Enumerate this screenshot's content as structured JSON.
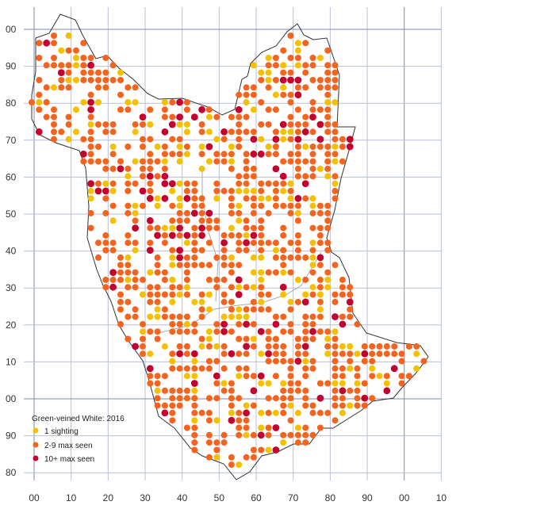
{
  "map": {
    "title": "Green-veined White:  2016",
    "x_axis_labels": [
      "00",
      "10",
      "20",
      "30",
      "40",
      "50",
      "60",
      "70",
      "80",
      "90",
      "00",
      "10"
    ],
    "y_axis_labels": [
      "00",
      "90",
      "80",
      "70",
      "60",
      "50",
      "40",
      "30",
      "20",
      "10",
      "00",
      "90",
      "80"
    ],
    "legend": [
      {
        "label": "1 sighting",
        "color": "#f5c000"
      },
      {
        "label": "2-9 max seen",
        "color": "#f4641e"
      },
      {
        "label": "10+ max seen",
        "color": "#c4002e"
      }
    ],
    "colors": {
      "gridline": "#b8bfd8",
      "major_gridline": "#7f8ab0",
      "boundary": "#333333",
      "inner_boundary": "#aaaaaa"
    }
  },
  "chart_data": {
    "type": "scatter",
    "title": "Green-veined White:  2016",
    "series": [
      {
        "name": "1 sighting",
        "color": "#f5c000",
        "points": [
          [
            2,
            62
          ],
          [
            7,
            197
          ],
          [
            12,
            138
          ],
          [
            22,
            106
          ],
          [
            26,
            100
          ],
          [
            30,
            122
          ],
          [
            38,
            191
          ],
          [
            42,
            195
          ],
          [
            48,
            138
          ],
          [
            51,
            185
          ],
          [
            55,
            116
          ],
          [
            60,
            188
          ],
          [
            62,
            115
          ],
          [
            65,
            118
          ],
          [
            73,
            89
          ],
          [
            77,
            130
          ],
          [
            83,
            129
          ],
          [
            87,
            66
          ],
          [
            89,
            71
          ],
          [
            92,
            88
          ],
          [
            98,
            106
          ],
          [
            99,
            17
          ],
          [
            100,
            94
          ],
          [
            101,
            115
          ],
          [
            106,
            89
          ],
          [
            105,
            12
          ],
          [
            106,
            13
          ],
          [
            107,
            8
          ],
          [
            111,
            11
          ],
          [
            114,
            17
          ],
          [
            115,
            21
          ],
          [
            118,
            48
          ],
          [
            119,
            56
          ],
          [
            123,
            60
          ],
          [
            126,
            63
          ],
          [
            128,
            45
          ],
          [
            144,
            53
          ],
          [
            147,
            56
          ],
          [
            149,
            62
          ],
          [
            153,
            61
          ],
          [
            154,
            54
          ],
          [
            147,
            44
          ],
          [
            147,
            16
          ],
          [
            162,
            83
          ],
          [
            176,
            147
          ],
          [
            164,
            21
          ],
          [
            187,
            89
          ],
          [
            187,
            63
          ],
          [
            190,
            64
          ],
          [
            193,
            61
          ],
          [
            208,
            78
          ],
          [
            212,
            75
          ],
          [
            221,
            76
          ],
          [
            226,
            77
          ],
          [
            229,
            71
          ],
          [
            231,
            68
          ],
          [
            234,
            71
          ],
          [
            238,
            77
          ],
          [
            241,
            85
          ],
          [
            248,
            87
          ],
          [
            248,
            84
          ],
          [
            251,
            95
          ],
          [
            254,
            95
          ],
          [
            257,
            99
          ],
          [
            261,
            97
          ],
          [
            264,
            89
          ],
          [
            265,
            82
          ],
          [
            268,
            76
          ],
          [
            268,
            72
          ],
          [
            272,
            68
          ],
          [
            274,
            71
          ],
          [
            278,
            82
          ],
          [
            283,
            91
          ],
          [
            284,
            98
          ],
          [
            282,
            40
          ],
          [
            282,
            24
          ],
          [
            286,
            29
          ],
          [
            288,
            30
          ],
          [
            290,
            33
          ],
          [
            295,
            35
          ],
          [
            298,
            47
          ],
          [
            299,
            43
          ],
          [
            296,
            56
          ],
          [
            300,
            67
          ],
          [
            303,
            80
          ],
          [
            304,
            88
          ],
          [
            306,
            88
          ],
          [
            310,
            79
          ],
          [
            316,
            71
          ],
          [
            318,
            62
          ],
          [
            319,
            59
          ],
          [
            323,
            59
          ],
          [
            326,
            56
          ],
          [
            325,
            53
          ],
          [
            315,
            56
          ],
          [
            312,
            56
          ],
          [
            308,
            51
          ],
          [
            310,
            46
          ],
          [
            316,
            46
          ],
          [
            319,
            46
          ],
          [
            322,
            56
          ],
          [
            327,
            64
          ],
          [
            330,
            67
          ],
          [
            331,
            69
          ],
          [
            334,
            78
          ],
          [
            337,
            83
          ],
          [
            336,
            88
          ],
          [
            333,
            89
          ],
          [
            339,
            92
          ],
          [
            339,
            85
          ],
          [
            343,
            73
          ],
          [
            346,
            72
          ],
          [
            350,
            82
          ],
          [
            355,
            89
          ],
          [
            358,
            89
          ],
          [
            359,
            76
          ],
          [
            364,
            74
          ],
          [
            370,
            73
          ],
          [
            371,
            75
          ],
          [
            375,
            75
          ],
          [
            379,
            75
          ],
          [
            383,
            75
          ],
          [
            387,
            73
          ],
          [
            389,
            67
          ],
          [
            390,
            72
          ],
          [
            394,
            84
          ],
          [
            396,
            74
          ],
          [
            399,
            64
          ],
          [
            401,
            60
          ],
          [
            405,
            59
          ],
          [
            407,
            65
          ],
          [
            411,
            71
          ],
          [
            415,
            74
          ],
          [
            417,
            66
          ],
          [
            418,
            63
          ],
          [
            419,
            45
          ],
          [
            418,
            62
          ],
          [
            421,
            84
          ],
          [
            418,
            97
          ],
          [
            425,
            95
          ],
          [
            423,
            100
          ],
          [
            423,
            124
          ],
          [
            421,
            141
          ],
          [
            425,
            148
          ],
          [
            428,
            152
          ],
          [
            431,
            169
          ],
          [
            431,
            158
          ],
          [
            432,
            175
          ],
          [
            435,
            178
          ],
          [
            436,
            192
          ],
          [
            439,
            195
          ],
          [
            442,
            199
          ],
          [
            444,
            202
          ],
          [
            446,
            212
          ],
          [
            449,
            213
          ],
          [
            454,
            225
          ],
          [
            458,
            228
          ],
          [
            461,
            225
          ],
          [
            464,
            226
          ],
          [
            468,
            225
          ],
          [
            474,
            225
          ],
          [
            478,
            228
          ],
          [
            480,
            234
          ],
          [
            486,
            235
          ],
          [
            490,
            233
          ],
          [
            492,
            232
          ],
          [
            493,
            237
          ],
          [
            501,
            236
          ],
          [
            507,
            238
          ],
          [
            513,
            237
          ],
          [
            516,
            240
          ],
          [
            515,
            266
          ],
          [
            518,
            262
          ],
          [
            520,
            263
          ],
          [
            524,
            269
          ],
          [
            530,
            271
          ],
          [
            537,
            276
          ],
          [
            540,
            276
          ],
          [
            537,
            284
          ],
          [
            532,
            289
          ],
          [
            525,
            295
          ],
          [
            521,
            302
          ],
          [
            517,
            305
          ],
          [
            512,
            308
          ],
          [
            508,
            314
          ],
          [
            505,
            318
          ],
          [
            500,
            321
          ],
          [
            496,
            323
          ],
          [
            490,
            326
          ],
          [
            483,
            329
          ],
          [
            475,
            333
          ],
          [
            469,
            331
          ],
          [
            461,
            333
          ],
          [
            454,
            332
          ],
          [
            446,
            335
          ],
          [
            440,
            337
          ],
          [
            434,
            341
          ],
          [
            426,
            346
          ],
          [
            418,
            348
          ],
          [
            412,
            352
          ],
          [
            405,
            358
          ],
          [
            398,
            361
          ],
          [
            392,
            365
          ],
          [
            383,
            372
          ],
          [
            375,
            381
          ],
          [
            368,
            388
          ],
          [
            361,
            395
          ],
          [
            354,
            401
          ],
          [
            346,
            407
          ],
          [
            339,
            414
          ],
          [
            332,
            419
          ],
          [
            324,
            423
          ],
          [
            317,
            428
          ],
          [
            309,
            431
          ],
          [
            304,
            435
          ],
          [
            296,
            438
          ],
          [
            289,
            440
          ],
          [
            281,
            442
          ],
          [
            274,
            444
          ],
          [
            266,
            446
          ],
          [
            258,
            446
          ],
          [
            252,
            444
          ],
          [
            247,
            440
          ],
          [
            240,
            437
          ],
          [
            236,
            433
          ],
          [
            229,
            432
          ],
          [
            222,
            429
          ],
          [
            217,
            424
          ],
          [
            208,
            422
          ],
          [
            198,
            418
          ],
          [
            193,
            416
          ],
          [
            189,
            413
          ],
          [
            183,
            408
          ],
          [
            179,
            405
          ],
          [
            171,
            400
          ],
          [
            164,
            396
          ],
          [
            156,
            390
          ],
          [
            149,
            384
          ],
          [
            143,
            380
          ],
          [
            138,
            375
          ],
          [
            133,
            371
          ],
          [
            130,
            365
          ],
          [
            126,
            362
          ],
          [
            120,
            355
          ],
          [
            117,
            350
          ],
          [
            112,
            345
          ],
          [
            106,
            338
          ],
          [
            101,
            333
          ],
          [
            96,
            327
          ],
          [
            93,
            323
          ],
          [
            88,
            318
          ],
          [
            85,
            312
          ],
          [
            80,
            307
          ],
          [
            77,
            302
          ],
          [
            74,
            297
          ],
          [
            69,
            291
          ],
          [
            66,
            287
          ],
          [
            60,
            281
          ],
          [
            55,
            275
          ],
          [
            51,
            270
          ],
          [
            48,
            264
          ],
          [
            46,
            258
          ],
          [
            42,
            252
          ],
          [
            37,
            246
          ],
          [
            35,
            241
          ],
          [
            32,
            236
          ],
          [
            30,
            230
          ],
          [
            26,
            225
          ],
          [
            21,
            219
          ],
          [
            17,
            214
          ],
          [
            16,
            207
          ],
          [
            13,
            200
          ],
          [
            10,
            196
          ],
          [
            8,
            189
          ],
          [
            6,
            185
          ],
          [
            2,
            182
          ]
        ]
      },
      {
        "name": "2-9 max seen",
        "color": "#f4641e",
        "points": []
      },
      {
        "name": "10+ max seen",
        "color": "#c4002e",
        "points": []
      }
    ],
    "xlabel": "",
    "ylabel": "",
    "grid": true,
    "legend_position": "bottom-left"
  }
}
